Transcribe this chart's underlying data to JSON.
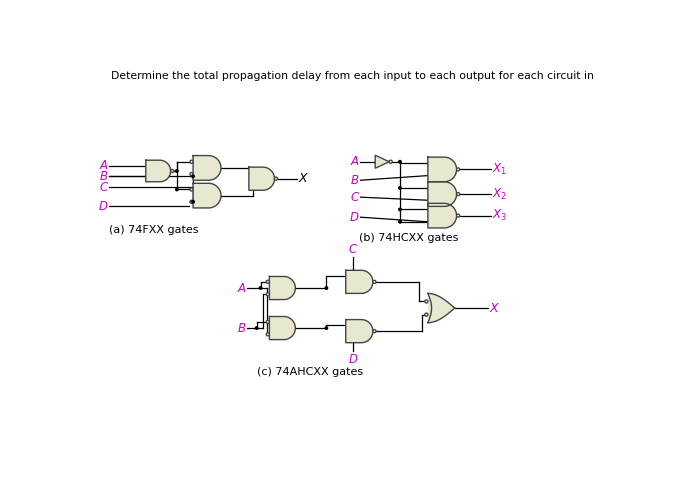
{
  "title": "Determine the total propagation delay from each input to each output for each circuit in",
  "title_color": "#000000",
  "label_color": "#cc00cc",
  "gate_fill": "#e8e8d0",
  "gate_edge": "#444444",
  "line_color": "#000000",
  "bg_color": "#ffffff",
  "caption_a": "(a) 74FXX gates",
  "caption_b": "(b) 74HCXX gates",
  "caption_c": "(c) 74AHCXX gates",
  "figw": 6.89,
  "figh": 4.88,
  "dpi": 100
}
